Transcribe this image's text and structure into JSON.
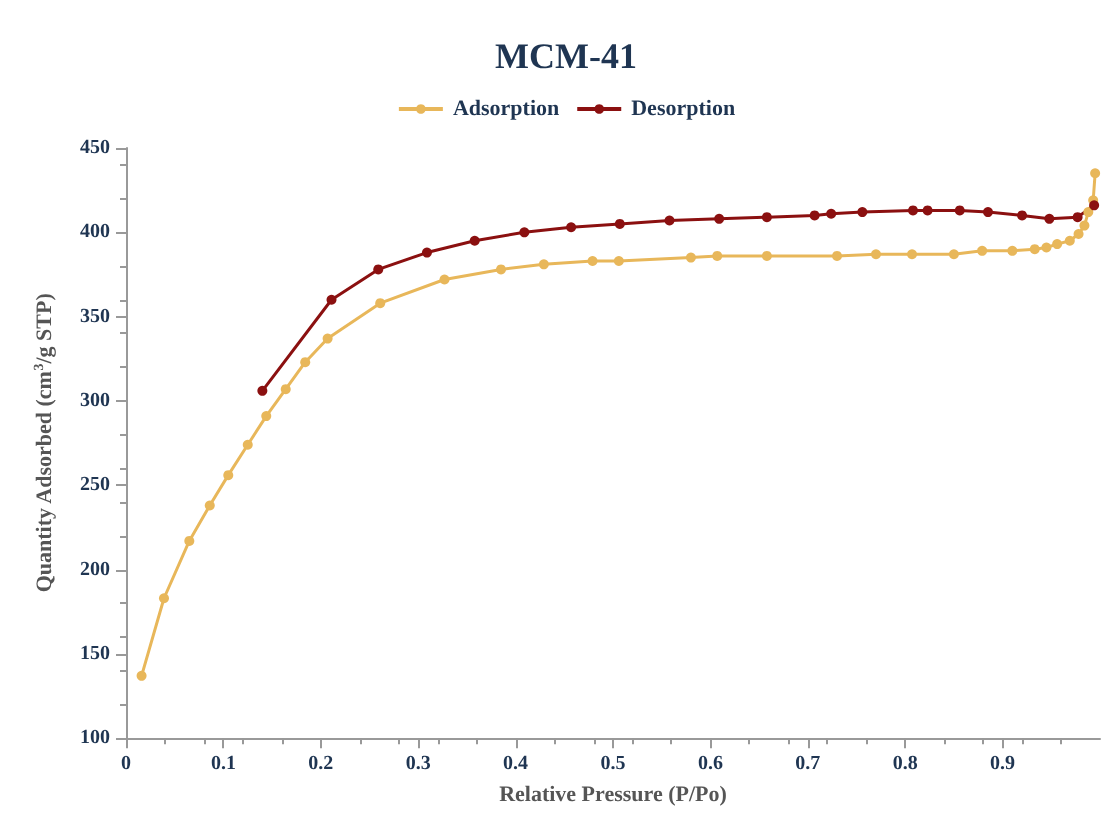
{
  "chart_data": {
    "type": "line",
    "title": "MCM-41",
    "xlabel": "Relative Pressure (P/Po)",
    "ylabel": "Quantity Adsorbed (cm$^{3}$/g STP)",
    "legend": "top",
    "marker": "circle",
    "grid": false,
    "xlim": [
      0,
      1
    ],
    "xticks": [
      0,
      0.1,
      0.2,
      0.3,
      0.4,
      0.5,
      0.6,
      0.7,
      0.8,
      0.9
    ],
    "ylim": [
      100,
      450
    ],
    "yticks": [
      100,
      150,
      200,
      250,
      300,
      350,
      400,
      450
    ],
    "series": [
      {
        "name": "Adsorption",
        "color": "#e8b75a",
        "x": [
          0.016,
          0.039,
          0.065,
          0.086,
          0.105,
          0.125,
          0.144,
          0.164,
          0.184,
          0.207,
          0.261,
          0.327,
          0.385,
          0.429,
          0.479,
          0.506,
          0.58,
          0.607,
          0.658,
          0.73,
          0.77,
          0.807,
          0.85,
          0.879,
          0.91,
          0.933,
          0.945,
          0.956,
          0.969,
          0.978,
          0.984,
          0.988,
          0.993,
          0.995
        ],
        "values": [
          137,
          183,
          217,
          238,
          256,
          274,
          291,
          307,
          323,
          337,
          358,
          372,
          378,
          381,
          383,
          383,
          385,
          386,
          386,
          386,
          387,
          387,
          387,
          389,
          389,
          390,
          391,
          393,
          395,
          399,
          404,
          412,
          419,
          435
        ]
      },
      {
        "name": "Desorption",
        "color": "#8b1010",
        "x": [
          0.14,
          0.211,
          0.259,
          0.309,
          0.358,
          0.409,
          0.457,
          0.507,
          0.558,
          0.609,
          0.658,
          0.707,
          0.724,
          0.756,
          0.808,
          0.823,
          0.856,
          0.885,
          0.92,
          0.948,
          0.977,
          0.994
        ],
        "values": [
          306,
          360,
          378,
          388,
          395,
          400,
          403,
          405,
          407,
          408,
          409,
          410,
          411,
          412,
          413,
          413,
          413,
          412,
          410,
          408,
          409,
          416
        ]
      }
    ]
  }
}
